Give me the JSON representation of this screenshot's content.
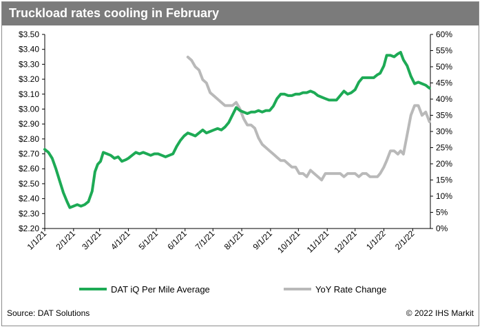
{
  "header": {
    "title": "Truckload rates cooling in February"
  },
  "footer": {
    "source": "Source: DAT Solutions",
    "copyright": "© 2022 IHS Markit"
  },
  "colors": {
    "primary_series": "#1daa55",
    "secondary_series": "#b9b9b9",
    "title_bar": "#7b7b7b"
  },
  "chart_data": {
    "type": "line",
    "x_ticks": [
      "1/1/21",
      "2/1/21",
      "3/1/21",
      "4/1/21",
      "5/1/21",
      "6/1/21",
      "7/1/21",
      "8/1/21",
      "9/1/21",
      "10/1/21",
      "11/1/21",
      "12/1/21",
      "1/1/22",
      "2/1/22"
    ],
    "x_range": [
      "2021-01-01",
      "2022-02-20"
    ],
    "y_left": {
      "min": 2.2,
      "max": 3.5,
      "step": 0.1,
      "ticks": [
        "$2.20",
        "$2.30",
        "$2.40",
        "$2.50",
        "$2.60",
        "$2.70",
        "$2.80",
        "$2.90",
        "$3.00",
        "$3.10",
        "$3.20",
        "$3.30",
        "$3.40",
        "$3.50"
      ]
    },
    "y_right": {
      "min": 0,
      "max": 0.6,
      "step": 0.05,
      "ticks": [
        "0%",
        "5%",
        "10%",
        "15%",
        "20%",
        "25%",
        "30%",
        "35%",
        "40%",
        "45%",
        "50%",
        "55%",
        "60%"
      ]
    },
    "grid": false,
    "legend_position": "bottom",
    "series": [
      {
        "name": "DAT iQ Per Mile Average",
        "axis": "left",
        "points": [
          [
            "2021-01-01",
            2.73
          ],
          [
            "2021-01-05",
            2.71
          ],
          [
            "2021-01-09",
            2.67
          ],
          [
            "2021-01-13",
            2.6
          ],
          [
            "2021-01-17",
            2.52
          ],
          [
            "2021-01-21",
            2.44
          ],
          [
            "2021-01-25",
            2.38
          ],
          [
            "2021-01-28",
            2.34
          ],
          [
            "2021-02-01",
            2.35
          ],
          [
            "2021-02-05",
            2.36
          ],
          [
            "2021-02-09",
            2.35
          ],
          [
            "2021-02-13",
            2.36
          ],
          [
            "2021-02-17",
            2.38
          ],
          [
            "2021-02-21",
            2.45
          ],
          [
            "2021-02-24",
            2.58
          ],
          [
            "2021-02-27",
            2.63
          ],
          [
            "2021-03-02",
            2.65
          ],
          [
            "2021-03-05",
            2.71
          ],
          [
            "2021-03-09",
            2.7
          ],
          [
            "2021-03-13",
            2.69
          ],
          [
            "2021-03-17",
            2.67
          ],
          [
            "2021-03-21",
            2.68
          ],
          [
            "2021-03-25",
            2.65
          ],
          [
            "2021-03-29",
            2.66
          ],
          [
            "2021-04-01",
            2.67
          ],
          [
            "2021-04-05",
            2.69
          ],
          [
            "2021-04-09",
            2.71
          ],
          [
            "2021-04-13",
            2.7
          ],
          [
            "2021-04-17",
            2.71
          ],
          [
            "2021-04-21",
            2.7
          ],
          [
            "2021-04-25",
            2.69
          ],
          [
            "2021-04-29",
            2.7
          ],
          [
            "2021-05-03",
            2.7
          ],
          [
            "2021-05-07",
            2.69
          ],
          [
            "2021-05-11",
            2.68
          ],
          [
            "2021-05-15",
            2.69
          ],
          [
            "2021-05-19",
            2.7
          ],
          [
            "2021-05-23",
            2.75
          ],
          [
            "2021-05-27",
            2.79
          ],
          [
            "2021-05-31",
            2.82
          ],
          [
            "2021-06-04",
            2.84
          ],
          [
            "2021-06-08",
            2.83
          ],
          [
            "2021-06-12",
            2.82
          ],
          [
            "2021-06-16",
            2.84
          ],
          [
            "2021-06-20",
            2.86
          ],
          [
            "2021-06-24",
            2.84
          ],
          [
            "2021-06-28",
            2.85
          ],
          [
            "2021-07-02",
            2.86
          ],
          [
            "2021-07-06",
            2.87
          ],
          [
            "2021-07-10",
            2.86
          ],
          [
            "2021-07-14",
            2.88
          ],
          [
            "2021-07-18",
            2.91
          ],
          [
            "2021-07-22",
            2.96
          ],
          [
            "2021-07-26",
            3.01
          ],
          [
            "2021-07-30",
            2.99
          ],
          [
            "2021-08-03",
            2.98
          ],
          [
            "2021-08-07",
            2.97
          ],
          [
            "2021-08-11",
            2.98
          ],
          [
            "2021-08-15",
            2.98
          ],
          [
            "2021-08-19",
            2.99
          ],
          [
            "2021-08-23",
            2.98
          ],
          [
            "2021-08-27",
            2.99
          ],
          [
            "2021-08-31",
            2.99
          ],
          [
            "2021-09-04",
            3.02
          ],
          [
            "2021-09-08",
            3.07
          ],
          [
            "2021-09-12",
            3.1
          ],
          [
            "2021-09-16",
            3.1
          ],
          [
            "2021-09-20",
            3.09
          ],
          [
            "2021-09-24",
            3.09
          ],
          [
            "2021-09-28",
            3.1
          ],
          [
            "2021-10-02",
            3.1
          ],
          [
            "2021-10-06",
            3.11
          ],
          [
            "2021-10-10",
            3.11
          ],
          [
            "2021-10-14",
            3.12
          ],
          [
            "2021-10-18",
            3.11
          ],
          [
            "2021-10-22",
            3.09
          ],
          [
            "2021-10-26",
            3.08
          ],
          [
            "2021-10-30",
            3.07
          ],
          [
            "2021-11-03",
            3.06
          ],
          [
            "2021-11-07",
            3.06
          ],
          [
            "2021-11-11",
            3.06
          ],
          [
            "2021-11-15",
            3.09
          ],
          [
            "2021-11-19",
            3.12
          ],
          [
            "2021-11-23",
            3.1
          ],
          [
            "2021-11-27",
            3.11
          ],
          [
            "2021-12-01",
            3.13
          ],
          [
            "2021-12-05",
            3.18
          ],
          [
            "2021-12-09",
            3.21
          ],
          [
            "2021-12-13",
            3.21
          ],
          [
            "2021-12-17",
            3.21
          ],
          [
            "2021-12-21",
            3.21
          ],
          [
            "2021-12-25",
            3.23
          ],
          [
            "2021-12-28",
            3.24
          ],
          [
            "2022-01-01",
            3.29
          ],
          [
            "2022-01-04",
            3.36
          ],
          [
            "2022-01-08",
            3.36
          ],
          [
            "2022-01-12",
            3.35
          ],
          [
            "2022-01-16",
            3.37
          ],
          [
            "2022-01-19",
            3.38
          ],
          [
            "2022-01-22",
            3.33
          ],
          [
            "2022-01-26",
            3.29
          ],
          [
            "2022-01-30",
            3.22
          ],
          [
            "2022-02-03",
            3.17
          ],
          [
            "2022-02-07",
            3.18
          ],
          [
            "2022-02-11",
            3.17
          ],
          [
            "2022-02-15",
            3.16
          ],
          [
            "2022-02-19",
            3.14
          ]
        ]
      },
      {
        "name": "YoY Rate Change",
        "axis": "right",
        "points": [
          [
            "2021-06-04",
            0.53
          ],
          [
            "2021-06-08",
            0.52
          ],
          [
            "2021-06-12",
            0.5
          ],
          [
            "2021-06-16",
            0.49
          ],
          [
            "2021-06-20",
            0.46
          ],
          [
            "2021-06-24",
            0.45
          ],
          [
            "2021-06-28",
            0.42
          ],
          [
            "2021-07-02",
            0.41
          ],
          [
            "2021-07-06",
            0.4
          ],
          [
            "2021-07-10",
            0.39
          ],
          [
            "2021-07-14",
            0.38
          ],
          [
            "2021-07-18",
            0.38
          ],
          [
            "2021-07-22",
            0.38
          ],
          [
            "2021-07-26",
            0.39
          ],
          [
            "2021-07-30",
            0.37
          ],
          [
            "2021-08-03",
            0.34
          ],
          [
            "2021-08-07",
            0.32
          ],
          [
            "2021-08-11",
            0.32
          ],
          [
            "2021-08-15",
            0.31
          ],
          [
            "2021-08-19",
            0.28
          ],
          [
            "2021-08-23",
            0.26
          ],
          [
            "2021-08-27",
            0.25
          ],
          [
            "2021-08-31",
            0.24
          ],
          [
            "2021-09-04",
            0.23
          ],
          [
            "2021-09-08",
            0.22
          ],
          [
            "2021-09-12",
            0.21
          ],
          [
            "2021-09-16",
            0.21
          ],
          [
            "2021-09-20",
            0.2
          ],
          [
            "2021-09-24",
            0.19
          ],
          [
            "2021-09-28",
            0.19
          ],
          [
            "2021-10-02",
            0.17
          ],
          [
            "2021-10-06",
            0.17
          ],
          [
            "2021-10-10",
            0.16
          ],
          [
            "2021-10-14",
            0.18
          ],
          [
            "2021-10-18",
            0.17
          ],
          [
            "2021-10-22",
            0.16
          ],
          [
            "2021-10-26",
            0.15
          ],
          [
            "2021-10-30",
            0.17
          ],
          [
            "2021-11-03",
            0.17
          ],
          [
            "2021-11-07",
            0.17
          ],
          [
            "2021-11-11",
            0.17
          ],
          [
            "2021-11-15",
            0.17
          ],
          [
            "2021-11-19",
            0.16
          ],
          [
            "2021-11-23",
            0.17
          ],
          [
            "2021-11-27",
            0.17
          ],
          [
            "2021-12-01",
            0.17
          ],
          [
            "2021-12-05",
            0.16
          ],
          [
            "2021-12-09",
            0.17
          ],
          [
            "2021-12-13",
            0.17
          ],
          [
            "2021-12-17",
            0.16
          ],
          [
            "2021-12-21",
            0.16
          ],
          [
            "2021-12-25",
            0.16
          ],
          [
            "2021-12-28",
            0.17
          ],
          [
            "2022-01-01",
            0.19
          ],
          [
            "2022-01-04",
            0.21
          ],
          [
            "2022-01-08",
            0.24
          ],
          [
            "2022-01-12",
            0.24
          ],
          [
            "2022-01-16",
            0.23
          ],
          [
            "2022-01-19",
            0.24
          ],
          [
            "2022-01-22",
            0.23
          ],
          [
            "2022-01-26",
            0.29
          ],
          [
            "2022-01-30",
            0.35
          ],
          [
            "2022-02-03",
            0.38
          ],
          [
            "2022-02-07",
            0.38
          ],
          [
            "2022-02-11",
            0.35
          ],
          [
            "2022-02-15",
            0.36
          ],
          [
            "2022-02-19",
            0.33
          ]
        ]
      }
    ]
  }
}
